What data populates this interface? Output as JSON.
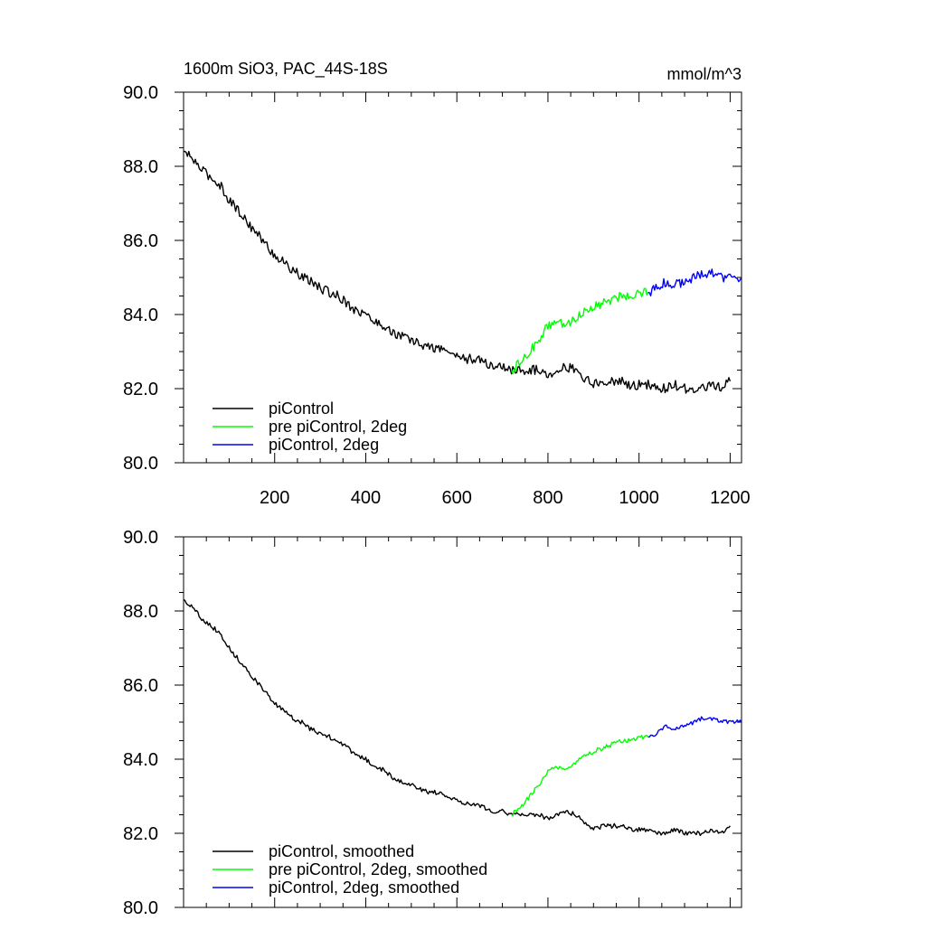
{
  "chart_data": [
    {
      "type": "line",
      "title": "1600m SiO3, PAC_44S-18S",
      "units": "mmol/m^3",
      "xlabel": "",
      "ylabel": "",
      "xlim": [
        0,
        1225
      ],
      "ylim": [
        80.0,
        90.0
      ],
      "xticks": [
        200,
        400,
        600,
        800,
        1000,
        1200
      ],
      "xtick_labels": [
        "200",
        "400",
        "600",
        "800",
        "1000",
        "1200"
      ],
      "yticks": [
        80.0,
        82.0,
        84.0,
        86.0,
        88.0,
        90.0
      ],
      "ytick_labels": [
        "80.0",
        "82.0",
        "84.0",
        "86.0",
        "88.0",
        "90.0"
      ],
      "grid": false,
      "legend_position": "bottom-left",
      "series": [
        {
          "name": "piControl",
          "color": "#000000",
          "x": [
            0,
            20,
            40,
            60,
            80,
            100,
            120,
            140,
            160,
            180,
            200,
            220,
            240,
            260,
            280,
            300,
            320,
            340,
            360,
            380,
            400,
            420,
            440,
            460,
            480,
            500,
            520,
            540,
            560,
            580,
            600,
            620,
            640,
            660,
            680,
            700,
            720,
            740,
            760,
            780,
            800,
            820,
            840,
            860,
            880,
            900,
            920,
            940,
            960,
            980,
            1000,
            1020,
            1040,
            1060,
            1080,
            1100,
            1120,
            1140,
            1160,
            1180,
            1200
          ],
          "y": [
            88.4,
            88.2,
            87.9,
            87.7,
            87.5,
            87.1,
            86.8,
            86.5,
            86.2,
            85.9,
            85.6,
            85.4,
            85.2,
            85.0,
            84.9,
            84.7,
            84.6,
            84.5,
            84.3,
            84.1,
            84.0,
            83.8,
            83.7,
            83.5,
            83.4,
            83.3,
            83.2,
            83.1,
            83.1,
            83.0,
            82.9,
            82.8,
            82.8,
            82.7,
            82.6,
            82.6,
            82.5,
            82.5,
            82.5,
            82.5,
            82.4,
            82.5,
            82.6,
            82.5,
            82.3,
            82.1,
            82.2,
            82.2,
            82.2,
            82.1,
            82.1,
            82.1,
            82.0,
            82.0,
            82.1,
            82.0,
            82.0,
            82.0,
            82.1,
            82.0,
            82.2
          ]
        },
        {
          "name": "pre piControl, 2deg",
          "color": "#00ff00",
          "x": [
            720,
            740,
            760,
            780,
            800,
            820,
            840,
            860,
            880,
            900,
            920,
            940,
            960,
            980,
            1000,
            1020
          ],
          "y": [
            82.5,
            82.7,
            83.0,
            83.3,
            83.7,
            83.8,
            83.7,
            83.9,
            84.1,
            84.2,
            84.3,
            84.4,
            84.5,
            84.5,
            84.6,
            84.6
          ]
        },
        {
          "name": "piControl, 2deg",
          "color": "#0000ff",
          "x": [
            1020,
            1040,
            1060,
            1080,
            1100,
            1120,
            1140,
            1160,
            1180,
            1200,
            1225
          ],
          "y": [
            84.6,
            84.7,
            84.9,
            84.8,
            84.9,
            85.0,
            85.1,
            85.1,
            85.0,
            85.0,
            85.0
          ]
        }
      ]
    },
    {
      "type": "line",
      "title": "",
      "units": "",
      "xlabel": "",
      "ylabel": "",
      "xlim": [
        0,
        1225
      ],
      "ylim": [
        80.0,
        90.0
      ],
      "xticks": [
        200,
        400,
        600,
        800,
        1000,
        1200
      ],
      "yticks": [
        80.0,
        82.0,
        84.0,
        86.0,
        88.0,
        90.0
      ],
      "ytick_labels": [
        "80.0",
        "82.0",
        "84.0",
        "86.0",
        "88.0",
        "90.0"
      ],
      "grid": false,
      "legend_position": "bottom-left",
      "series": [
        {
          "name": "piControl, smoothed",
          "color": "#000000",
          "x": [
            0,
            20,
            40,
            60,
            80,
            100,
            120,
            140,
            160,
            180,
            200,
            220,
            240,
            260,
            280,
            300,
            320,
            340,
            360,
            380,
            400,
            420,
            440,
            460,
            480,
            500,
            520,
            540,
            560,
            580,
            600,
            620,
            640,
            660,
            680,
            700,
            720,
            740,
            760,
            780,
            800,
            820,
            840,
            860,
            880,
            900,
            920,
            940,
            960,
            980,
            1000,
            1020,
            1040,
            1060,
            1080,
            1100,
            1120,
            1140,
            1160,
            1180,
            1200
          ],
          "y": [
            88.3,
            88.1,
            87.8,
            87.6,
            87.4,
            87.0,
            86.7,
            86.4,
            86.1,
            85.8,
            85.5,
            85.3,
            85.1,
            85.0,
            84.8,
            84.7,
            84.6,
            84.5,
            84.3,
            84.1,
            84.0,
            83.8,
            83.7,
            83.5,
            83.4,
            83.3,
            83.2,
            83.1,
            83.1,
            83.0,
            82.9,
            82.8,
            82.8,
            82.7,
            82.6,
            82.6,
            82.5,
            82.5,
            82.5,
            82.5,
            82.4,
            82.5,
            82.6,
            82.5,
            82.3,
            82.1,
            82.2,
            82.2,
            82.2,
            82.1,
            82.1,
            82.1,
            82.0,
            82.0,
            82.1,
            82.0,
            82.0,
            82.0,
            82.1,
            82.0,
            82.2
          ]
        },
        {
          "name": "pre piControl, 2deg, smoothed",
          "color": "#00ff00",
          "x": [
            720,
            740,
            760,
            780,
            800,
            820,
            840,
            860,
            880,
            900,
            920,
            940,
            960,
            980,
            1000,
            1020
          ],
          "y": [
            82.5,
            82.7,
            83.0,
            83.3,
            83.7,
            83.8,
            83.7,
            83.9,
            84.1,
            84.2,
            84.3,
            84.4,
            84.5,
            84.5,
            84.6,
            84.6
          ]
        },
        {
          "name": "piControl, 2deg, smoothed",
          "color": "#0000ff",
          "x": [
            1020,
            1040,
            1060,
            1080,
            1100,
            1120,
            1140,
            1160,
            1180,
            1200,
            1225
          ],
          "y": [
            84.6,
            84.7,
            84.9,
            84.8,
            84.9,
            85.0,
            85.1,
            85.1,
            85.0,
            85.0,
            85.0
          ]
        }
      ]
    }
  ]
}
